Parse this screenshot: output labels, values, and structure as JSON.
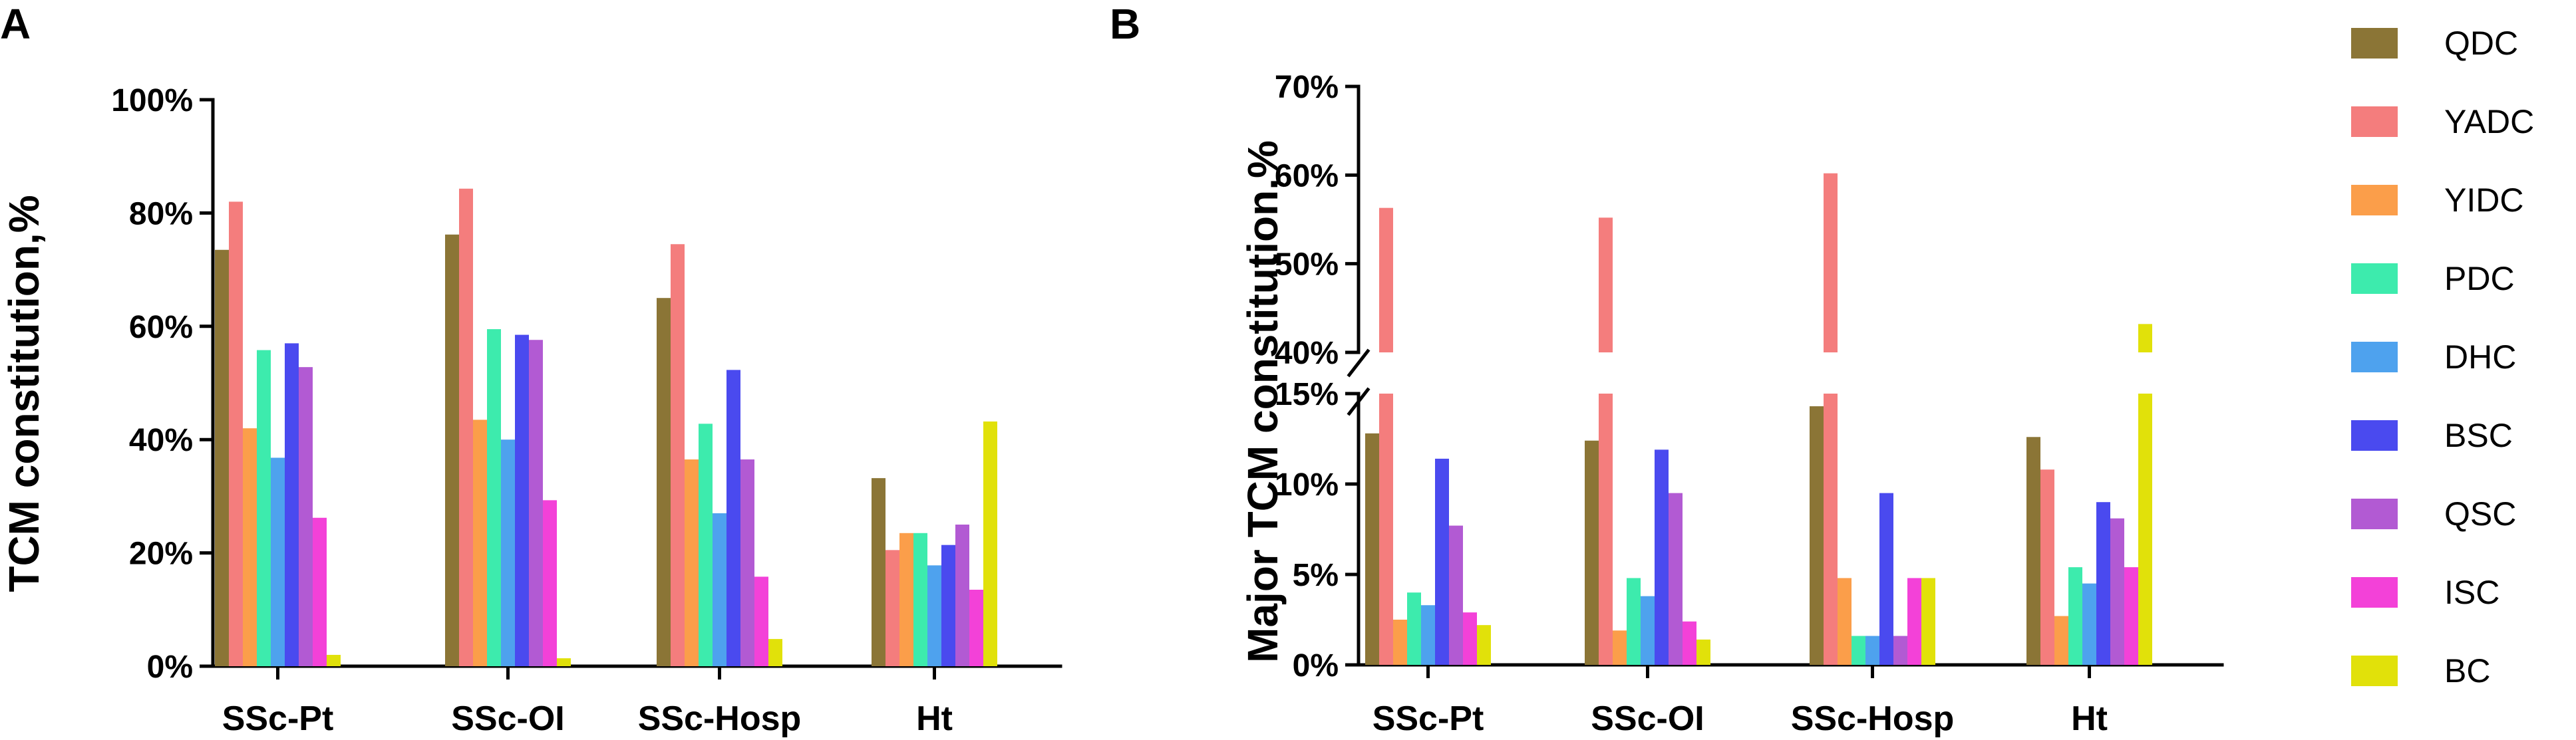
{
  "chart_data": [
    {
      "panel": "A",
      "type": "bar",
      "ylabel": "TCM constitution,%",
      "xlabel": "",
      "ylim": [
        0,
        100
      ],
      "yticks": [
        "0%",
        "20%",
        "40%",
        "60%",
        "80%",
        "100%"
      ],
      "categories": [
        "SSc-Pt",
        "SSc-OI",
        "SSc-Hosp",
        "Ht"
      ],
      "series": [
        {
          "name": "QDC",
          "values": [
            73.5,
            76.2,
            65.0,
            33.2
          ]
        },
        {
          "name": "YADC",
          "values": [
            82.0,
            84.3,
            74.5,
            20.5
          ]
        },
        {
          "name": "YIDC",
          "values": [
            42.0,
            43.5,
            36.5,
            23.5
          ]
        },
        {
          "name": "PDC",
          "values": [
            55.8,
            59.5,
            42.8,
            23.5
          ]
        },
        {
          "name": "DHC",
          "values": [
            36.8,
            40.0,
            27.0,
            17.8
          ]
        },
        {
          "name": "BSC",
          "values": [
            57.0,
            58.5,
            52.3,
            21.4
          ]
        },
        {
          "name": "QSC",
          "values": [
            52.8,
            57.6,
            36.5,
            25.0
          ]
        },
        {
          "name": "ISC",
          "values": [
            26.2,
            29.3,
            15.8,
            13.5
          ]
        },
        {
          "name": "BC",
          "values": [
            2.0,
            1.4,
            4.8,
            43.2
          ]
        }
      ]
    },
    {
      "panel": "B",
      "type": "bar",
      "ylabel": "Major TCM constitution,%",
      "xlabel": "",
      "y_axis_break": {
        "lower_range": [
          0,
          15
        ],
        "upper_range": [
          40,
          70
        ]
      },
      "yticks_lower": [
        "0%",
        "5%",
        "10%",
        "15%"
      ],
      "yticks_upper": [
        "40%",
        "50%",
        "60%",
        "70%"
      ],
      "categories": [
        "SSc-Pt",
        "SSc-OI",
        "SSc-Hosp",
        "Ht"
      ],
      "series": [
        {
          "name": "QDC",
          "values": [
            12.8,
            12.4,
            14.3,
            12.6
          ]
        },
        {
          "name": "YADC",
          "values": [
            56.3,
            55.2,
            60.2,
            10.8
          ]
        },
        {
          "name": "YIDC",
          "values": [
            2.5,
            1.9,
            4.8,
            2.7
          ]
        },
        {
          "name": "PDC",
          "values": [
            4.0,
            4.8,
            1.6,
            5.4
          ]
        },
        {
          "name": "DHC",
          "values": [
            3.3,
            3.8,
            1.6,
            4.5
          ]
        },
        {
          "name": "BSC",
          "values": [
            11.4,
            11.9,
            9.5,
            9.0
          ]
        },
        {
          "name": "QSC",
          "values": [
            7.7,
            9.5,
            1.6,
            8.1
          ]
        },
        {
          "name": "ISC",
          "values": [
            2.9,
            2.4,
            4.8,
            5.4
          ]
        },
        {
          "name": "BC",
          "values": [
            2.2,
            1.4,
            4.8,
            43.2
          ]
        }
      ]
    }
  ],
  "legend": {
    "placement": "right",
    "items": [
      {
        "name": "QDC",
        "color": "#8B7536"
      },
      {
        "name": "YADC",
        "color": "#F47D7D"
      },
      {
        "name": "YIDC",
        "color": "#FB9E4A"
      },
      {
        "name": "PDC",
        "color": "#3DEBAD"
      },
      {
        "name": "DHC",
        "color": "#4EA2EE"
      },
      {
        "name": "BSC",
        "color": "#4A4AEF"
      },
      {
        "name": "QSC",
        "color": "#B25AD3"
      },
      {
        "name": "ISC",
        "color": "#F341D8"
      },
      {
        "name": "BC",
        "color": "#E1E10A"
      }
    ]
  }
}
